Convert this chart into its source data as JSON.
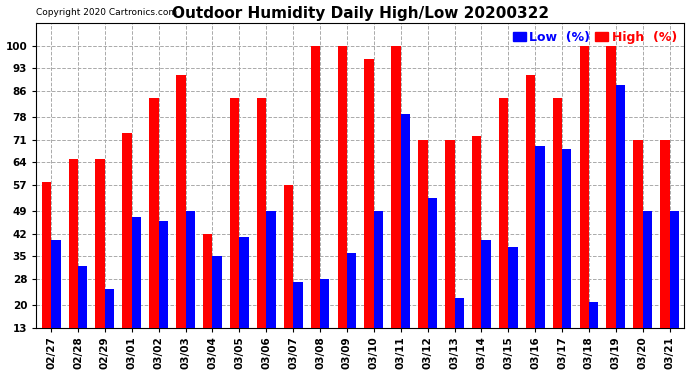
{
  "title": "Outdoor Humidity Daily High/Low 20200322",
  "copyright": "Copyright 2020 Cartronics.com",
  "categories": [
    "02/27",
    "02/28",
    "02/29",
    "03/01",
    "03/02",
    "03/03",
    "03/04",
    "03/05",
    "03/06",
    "03/07",
    "03/08",
    "03/09",
    "03/10",
    "03/11",
    "03/12",
    "03/13",
    "03/14",
    "03/15",
    "03/16",
    "03/17",
    "03/18",
    "03/19",
    "03/20",
    "03/21"
  ],
  "high_values": [
    58,
    65,
    65,
    73,
    84,
    91,
    42,
    84,
    84,
    57,
    100,
    100,
    96,
    100,
    71,
    71,
    72,
    84,
    91,
    84,
    100,
    100,
    71,
    71
  ],
  "low_values": [
    40,
    32,
    25,
    47,
    46,
    49,
    35,
    41,
    49,
    27,
    28,
    36,
    49,
    79,
    53,
    22,
    40,
    38,
    69,
    68,
    21,
    88,
    49,
    49
  ],
  "high_color": "#ff0000",
  "low_color": "#0000ff",
  "bg_color": "#ffffff",
  "grid_color": "#aaaaaa",
  "ylim": [
    13,
    107
  ],
  "yticks": [
    13,
    20,
    28,
    35,
    42,
    49,
    57,
    64,
    71,
    78,
    86,
    93,
    100
  ],
  "bar_width": 0.35,
  "title_fontsize": 11,
  "tick_fontsize": 7.5,
  "legend_fontsize": 9
}
